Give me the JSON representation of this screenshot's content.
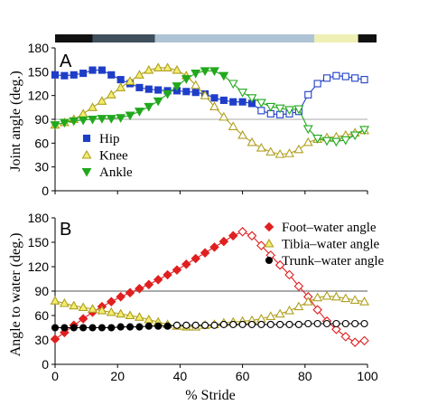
{
  "phase_bar": {
    "segments": [
      {
        "start": 0,
        "end": 12,
        "color": "#111111"
      },
      {
        "start": 12,
        "end": 32,
        "color": "#3f4f5c"
      },
      {
        "start": 32,
        "end": 83,
        "color": "#aec4d4"
      },
      {
        "start": 83,
        "end": 97,
        "color": "#eeefb4"
      },
      {
        "start": 97,
        "end": 100,
        "color": "#111111"
      }
    ]
  },
  "chart_data": [
    {
      "type": "line",
      "panel_label": "A",
      "ylabel": "Joint angle (deg.)",
      "xlabel": "",
      "xlim": [
        0,
        100
      ],
      "ylim": [
        0,
        180
      ],
      "yticks": [
        0,
        30,
        60,
        90,
        120,
        150,
        180
      ],
      "xticks": [
        0,
        20,
        40,
        60,
        80,
        100
      ],
      "xtick_labels_visible": false,
      "reference_line": 90,
      "legend": {
        "position": "bottom-left"
      },
      "series": [
        {
          "name": "Hip",
          "color": "#1f3ec8",
          "marker": "square",
          "x": [
            0,
            3,
            6,
            9,
            12,
            15,
            18,
            21,
            24,
            27,
            30,
            33,
            36,
            39,
            42,
            45,
            48,
            51,
            54,
            57,
            60,
            63,
            66,
            69,
            72,
            75,
            78,
            81,
            84,
            87,
            90,
            93,
            96,
            99
          ],
          "y": [
            146,
            145,
            146,
            148,
            152,
            152,
            146,
            140,
            135,
            130,
            128,
            127,
            126,
            126,
            125,
            124,
            122,
            117,
            114,
            112,
            112,
            110,
            101,
            97,
            96,
            97,
            100,
            121,
            135,
            142,
            145,
            144,
            142,
            140
          ],
          "hollow_from_x": 66
        },
        {
          "name": "Knee",
          "color": "#b0a020",
          "fill": "#f2ee70",
          "marker": "triangle-up",
          "x": [
            0,
            3,
            6,
            9,
            12,
            15,
            18,
            21,
            24,
            27,
            30,
            33,
            36,
            39,
            42,
            45,
            48,
            51,
            54,
            57,
            60,
            63,
            66,
            69,
            72,
            75,
            78,
            81,
            84,
            87,
            90,
            93,
            96,
            99
          ],
          "y": [
            83,
            86,
            90,
            97,
            105,
            113,
            121,
            130,
            138,
            146,
            152,
            155,
            155,
            152,
            145,
            133,
            120,
            106,
            93,
            81,
            70,
            61,
            54,
            49,
            46,
            47,
            52,
            61,
            65,
            67,
            68,
            70,
            73,
            76
          ],
          "hollow_from_x": 45
        },
        {
          "name": "Ankle",
          "color": "#22a81c",
          "marker": "triangle-down",
          "x": [
            0,
            3,
            6,
            9,
            12,
            15,
            18,
            21,
            24,
            27,
            30,
            33,
            36,
            39,
            42,
            45,
            48,
            51,
            54,
            57,
            60,
            63,
            66,
            69,
            72,
            75,
            78,
            81,
            84,
            87,
            90,
            93,
            96,
            99
          ],
          "y": [
            83,
            86,
            88,
            89,
            90,
            91,
            91,
            92,
            95,
            100,
            106,
            113,
            122,
            132,
            141,
            148,
            151,
            151,
            145,
            135,
            124,
            117,
            111,
            106,
            104,
            102,
            103,
            78,
            66,
            63,
            62,
            64,
            70,
            77
          ],
          "hollow_from_x": 57
        }
      ]
    },
    {
      "type": "line",
      "panel_label": "B",
      "ylabel": "Angle to water (deg.)",
      "xlabel": "% Stride",
      "xlim": [
        0,
        100
      ],
      "ylim": [
        0,
        180
      ],
      "yticks": [
        0,
        30,
        60,
        90,
        120,
        150,
        180
      ],
      "xticks": [
        0,
        20,
        40,
        60,
        80,
        100
      ],
      "reference_line": 90,
      "legend": {
        "position": "top-right"
      },
      "series": [
        {
          "name": "Foot–water angle",
          "color": "#e02020",
          "marker": "diamond",
          "x": [
            0,
            3,
            6,
            9,
            12,
            15,
            18,
            21,
            24,
            27,
            30,
            33,
            36,
            39,
            42,
            45,
            48,
            51,
            54,
            57,
            60,
            63,
            66,
            69,
            72,
            75,
            78,
            81,
            84,
            87,
            90,
            93,
            96,
            99
          ],
          "y": [
            31,
            39,
            48,
            56,
            64,
            71,
            77,
            83,
            88,
            93,
            98,
            104,
            110,
            116,
            123,
            130,
            137,
            144,
            151,
            158,
            163,
            158,
            146,
            134,
            122,
            110,
            96,
            83,
            67,
            53,
            43,
            34,
            27,
            29
          ],
          "hollow_from_x": 60
        },
        {
          "name": "Tibia–water angle",
          "color": "#b0a020",
          "fill": "#f2ee70",
          "marker": "triangle-up",
          "x": [
            0,
            3,
            6,
            9,
            12,
            15,
            18,
            21,
            24,
            27,
            30,
            33,
            36,
            39,
            42,
            45,
            48,
            51,
            54,
            57,
            60,
            63,
            66,
            69,
            72,
            75,
            78,
            81,
            84,
            87,
            90,
            93,
            96,
            99
          ],
          "y": [
            78,
            75,
            72,
            70,
            68,
            66,
            64,
            62,
            60,
            58,
            55,
            52,
            49,
            47,
            46,
            46,
            48,
            49,
            51,
            52,
            53,
            54,
            56,
            59,
            62,
            66,
            71,
            77,
            82,
            84,
            83,
            81,
            79,
            77
          ],
          "hollow_from_x": 45
        },
        {
          "name": "Trunk–water angle",
          "color": "#000000",
          "marker": "circle",
          "x": [
            0,
            3,
            6,
            9,
            12,
            15,
            18,
            21,
            24,
            27,
            30,
            33,
            36,
            39,
            42,
            45,
            48,
            51,
            54,
            57,
            60,
            63,
            66,
            69,
            72,
            75,
            78,
            81,
            84,
            87,
            90,
            93,
            96,
            99
          ],
          "y": [
            45,
            45,
            45,
            45,
            45,
            45,
            45,
            46,
            46,
            46,
            47,
            47,
            47,
            48,
            48,
            48,
            48,
            48,
            49,
            49,
            49,
            49,
            49,
            49,
            49,
            49,
            49,
            50,
            50,
            50,
            50,
            50,
            50,
            50
          ],
          "hollow_from_x": 39
        }
      ]
    }
  ]
}
